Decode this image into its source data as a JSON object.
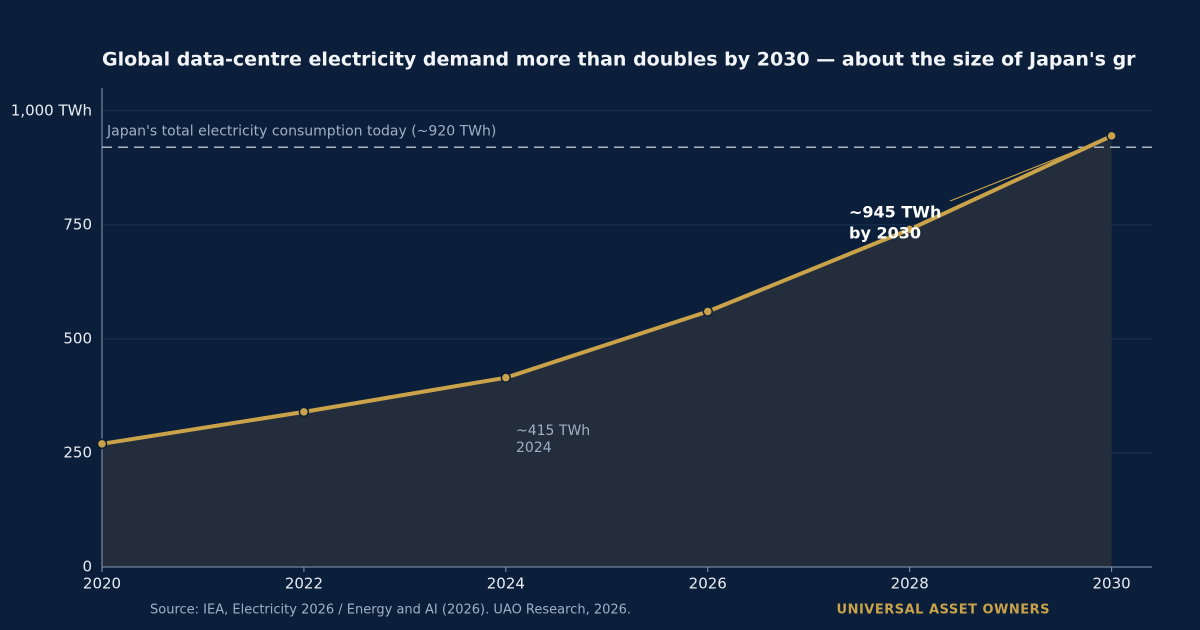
{
  "chart_data": {
    "type": "line",
    "title": "Global data-centre electricity demand more than doubles by 2030 — about the size of Japan's gr",
    "x": [
      2020,
      2022,
      2024,
      2026,
      2028,
      2030
    ],
    "series": [
      {
        "color": "#c9a24a",
        "values": [
          270,
          340,
          415,
          560,
          740,
          945
        ]
      }
    ],
    "area_fill": "#232d3b",
    "xlim": [
      2020,
      2030.4
    ],
    "xticks": [
      2020,
      2022,
      2024,
      2026,
      2028,
      2030
    ],
    "ylim": [
      0,
      1050
    ],
    "yticks": [
      0,
      250,
      500,
      750,
      {
        "value": 1000,
        "label": "1,000 TWh"
      }
    ],
    "grid": true,
    "reference_line": {
      "value": 920,
      "label": "Japan's total electricity consumption today (~920 TWh)"
    },
    "annotations": [
      {
        "lines": [
          "~945 TWh",
          "by 2030"
        ]
      },
      {
        "lines": [
          "~415 TWh",
          "2024"
        ]
      }
    ],
    "source": "Source: IEA, Electricity 2026 / Energy and AI (2026).  UAO Research, 2026.",
    "brand": "UNIVERSAL ASSET OWNERS"
  }
}
